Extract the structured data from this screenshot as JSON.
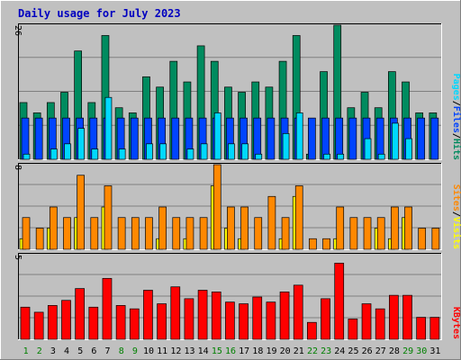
{
  "title": "Daily usage for July 2023",
  "colors": {
    "background": "#c0c0c0",
    "plot_bg": "#c0c0c0",
    "gridline": "#808080",
    "hits": "#008b5f",
    "files": "#0044ff",
    "pages": "#00d8ff",
    "visits": "#ffff00",
    "sites": "#ff8800",
    "kbytes": "#ff0000",
    "title": "#0000c0",
    "weekday_label": "#000000",
    "weekend_label": "#008000"
  },
  "side_labels": {
    "hits": "Hits",
    "files": "Files",
    "pages": "Pages",
    "visits": "Visits",
    "sites": "Sites",
    "kbytes": "KBytes",
    "sep": "/"
  },
  "chart_data": {
    "type": "bar",
    "title": "Daily usage for July 2023",
    "categories": [
      "1",
      "2",
      "3",
      "4",
      "5",
      "6",
      "7",
      "8",
      "9",
      "10",
      "11",
      "12",
      "13",
      "14",
      "15",
      "16",
      "17",
      "18",
      "19",
      "20",
      "21",
      "22",
      "23",
      "24",
      "25",
      "26",
      "27",
      "28",
      "29",
      "30",
      "31"
    ],
    "weekend_days": [
      "1",
      "2",
      "8",
      "9",
      "15",
      "16",
      "22",
      "23",
      "29",
      "30"
    ],
    "panels": [
      {
        "ymax": 26,
        "ymax_label": "26",
        "series": [
          {
            "name": "Hits",
            "values": [
              11,
              9,
              11,
              13,
              21,
              11,
              24,
              10,
              9,
              16,
              14,
              19,
              15,
              22,
              19,
              14,
              13,
              15,
              14,
              19,
              24,
              1,
              17,
              26,
              10,
              13,
              10,
              17,
              15,
              9,
              9
            ]
          },
          {
            "name": "Files",
            "values": [
              8,
              8,
              8,
              8,
              8,
              8,
              8,
              8,
              8,
              8,
              8,
              8,
              8,
              8,
              8,
              8,
              8,
              8,
              8,
              8,
              8,
              8,
              8,
              8,
              8,
              8,
              8,
              8,
              8,
              8,
              8
            ]
          },
          {
            "name": "Pages",
            "values": [
              1,
              0,
              2,
              3,
              6,
              2,
              12,
              2,
              0,
              3,
              3,
              0,
              2,
              3,
              9,
              3,
              3,
              1,
              0,
              5,
              9,
              0,
              1,
              1,
              0,
              4,
              1,
              7,
              4,
              0,
              0
            ]
          }
        ]
      },
      {
        "ymax": 8,
        "ymax_label": "8",
        "series": [
          {
            "name": "Visits",
            "values": [
              1,
              0,
              2,
              0,
              3,
              0,
              4,
              0,
              0,
              0,
              1,
              0,
              1,
              0,
              6,
              2,
              1,
              0,
              0,
              1,
              5,
              0,
              0,
              1,
              0,
              0,
              2,
              1,
              3,
              0,
              0
            ]
          },
          {
            "name": "Sites",
            "values": [
              3,
              2,
              4,
              3,
              7,
              3,
              6,
              3,
              3,
              3,
              4,
              3,
              3,
              3,
              8,
              4,
              4,
              3,
              5,
              3,
              6,
              1,
              1,
              4,
              3,
              3,
              3,
              4,
              4,
              2,
              2
            ]
          }
        ]
      },
      {
        "ymax": 5,
        "ymax_label": "5",
        "series": [
          {
            "name": "KBytes",
            "values": [
              1.9,
              1.6,
              2.0,
              2.3,
              3.0,
              1.9,
              3.6,
              2.0,
              1.8,
              2.9,
              2.1,
              3.1,
              2.4,
              2.9,
              2.8,
              2.2,
              2.1,
              2.5,
              2.2,
              2.8,
              3.2,
              1.0,
              2.4,
              4.5,
              1.2,
              2.1,
              1.8,
              2.6,
              2.6,
              1.3,
              1.3
            ]
          }
        ]
      }
    ]
  }
}
